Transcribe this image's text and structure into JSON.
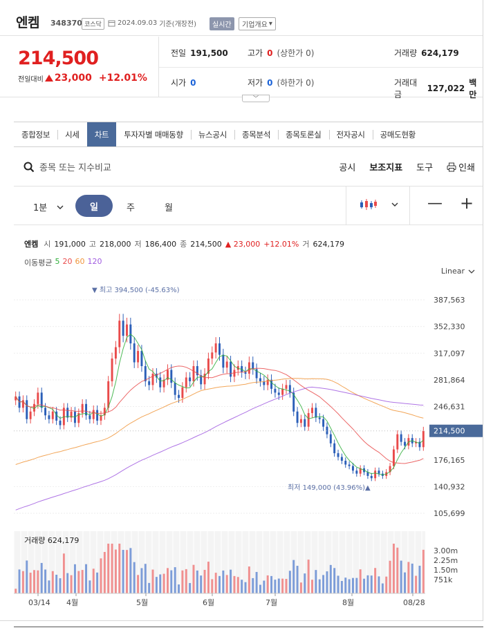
{
  "header": {
    "name": "엔켐",
    "code": "348370",
    "market": "코스닥",
    "date": "2024.09.03",
    "date_suffix": "기준(개장전)",
    "realtime": "실시간",
    "overview": "기업개요"
  },
  "quote": {
    "price": "214,500",
    "change_label": "전일대비",
    "change": "23,000",
    "change_pct": "+12.01%",
    "prev_close_label": "전일",
    "prev_close": "191,500",
    "high_label": "고가",
    "high": "0",
    "upper_limit": "(상한가 0)",
    "volume_label": "거래량",
    "volume": "624,179",
    "open_label": "시가",
    "open": "0",
    "low_label": "저가",
    "low": "0",
    "lower_limit": "(하한가 0)",
    "value_label": "거래대금",
    "value": "127,022",
    "value_unit": "백만"
  },
  "tabs": [
    "종합정보",
    "시세",
    "차트",
    "투자자별 매매동향",
    "뉴스공시",
    "종목분석",
    "종목토론실",
    "전자공시",
    "공매도현황"
  ],
  "active_tab": "차트",
  "toolbar": {
    "search_placeholder": "종목 또는 지수비교",
    "notice": "공시",
    "indicators": "보조지표",
    "tools": "도구",
    "print": "인쇄"
  },
  "periods": {
    "minute": "1분",
    "day": "일",
    "week": "주",
    "month": "월"
  },
  "chart_info": {
    "name": "엔켐",
    "open_label": "시",
    "open": "191,000",
    "high_label": "고",
    "high": "218,000",
    "low_label": "저",
    "low": "186,400",
    "close_label": "종",
    "close": "214,500",
    "change": "23,000",
    "change_pct": "+12.01%",
    "volume_label": "거",
    "volume": "624,179",
    "ma_label": "이동평균",
    "ma": [
      {
        "period": "5",
        "color": "#2fae3a"
      },
      {
        "period": "20",
        "color": "#e94b4b"
      },
      {
        "period": "60",
        "color": "#f0953a"
      },
      {
        "period": "120",
        "color": "#a05be0"
      }
    ],
    "scale": "Linear",
    "max_note": "최고 394,500 (-45.63%)",
    "min_note": "최저 149,000 (43.96%)",
    "current_badge": "214,500",
    "volume_title": "거래량 624,179"
  },
  "chart_data": {
    "type": "candlestick",
    "x_ticks": [
      "03/14",
      "4월",
      "5월",
      "6월",
      "7월",
      "8월",
      "08/28"
    ],
    "y_ticks": [
      387563,
      352330,
      317097,
      281864,
      246631,
      176165,
      140932,
      105699
    ],
    "ylim": [
      105699,
      387563
    ],
    "volume_ticks": [
      "3.00m",
      "2.25m",
      "1.50m",
      "751k"
    ],
    "colors": {
      "up": "#e94b4b",
      "down": "#2b5fb8"
    },
    "ohlc_close_approx": [
      260000,
      245000,
      255000,
      230000,
      240000,
      250000,
      265000,
      245000,
      235000,
      230000,
      240000,
      228000,
      222000,
      245000,
      232000,
      240000,
      225000,
      238000,
      250000,
      235000,
      230000,
      242000,
      228000,
      235000,
      245000,
      280000,
      310000,
      325000,
      360000,
      340000,
      355000,
      330000,
      305000,
      320000,
      300000,
      280000,
      275000,
      290000,
      285000,
      272000,
      282000,
      295000,
      278000,
      262000,
      258000,
      272000,
      285000,
      280000,
      300000,
      288000,
      276000,
      290000,
      310000,
      318000,
      330000,
      315000,
      298000,
      306000,
      286000,
      295000,
      300000,
      292000,
      290000,
      305000,
      296000,
      284000,
      280000,
      275000,
      282000,
      270000,
      265000,
      262000,
      270000,
      275000,
      265000,
      240000,
      225000,
      230000,
      220000,
      238000,
      245000,
      232000,
      230000,
      220000,
      210000,
      198000,
      185000,
      180000,
      175000,
      170000,
      168000,
      162000,
      158000,
      165000,
      160000,
      155000,
      152000,
      162000,
      158000,
      155000,
      160000,
      168000,
      190000,
      210000,
      200000,
      195000,
      205000,
      198000,
      200000,
      193000,
      214500
    ],
    "moving_averages": [
      "5",
      "20",
      "60",
      "120"
    ],
    "max": 394500,
    "min": 149000,
    "last": 214500
  }
}
